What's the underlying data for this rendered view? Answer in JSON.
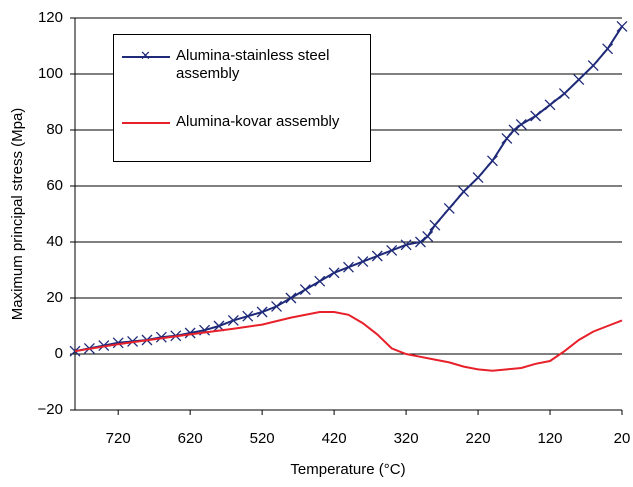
{
  "chart_data": {
    "type": "line",
    "x_label": "Temperature (°C)",
    "y_label": "Maximum principal stress (Mpa)",
    "xlim": [
      780,
      20
    ],
    "ylim": [
      -20,
      120
    ],
    "xticks": [
      720,
      620,
      520,
      420,
      320,
      220,
      120,
      20
    ],
    "yticks": [
      {
        "value": -20,
        "label": "−20"
      },
      0,
      20,
      40,
      60,
      80,
      100,
      120
    ],
    "grid": true,
    "legend": "upper left",
    "series": [
      {
        "name": "Alumina-stainless steel assembly",
        "color": "#1f2a78",
        "marker": "x",
        "x": [
          780,
          760,
          740,
          720,
          700,
          680,
          660,
          640,
          620,
          600,
          580,
          560,
          540,
          520,
          500,
          480,
          460,
          440,
          420,
          400,
          380,
          360,
          340,
          320,
          300,
          290,
          280,
          260,
          240,
          220,
          200,
          180,
          170,
          160,
          140,
          120,
          100,
          80,
          60,
          40,
          20
        ],
        "values": [
          1,
          2,
          3,
          4,
          4.5,
          5,
          6,
          6.5,
          7.5,
          8.5,
          10,
          12,
          13.5,
          15,
          17,
          20,
          23,
          26,
          29,
          31,
          33,
          35,
          37,
          39,
          40,
          42,
          46,
          52,
          58,
          63,
          69,
          77,
          80,
          82,
          85,
          89,
          93,
          98,
          103,
          109,
          117
        ]
      },
      {
        "name": "Alumina-kovar assembly",
        "color": "#e8202a",
        "marker": "none",
        "x": [
          780,
          720,
          620,
          560,
          520,
          480,
          440,
          420,
          400,
          380,
          360,
          340,
          320,
          300,
          280,
          260,
          240,
          220,
          200,
          180,
          160,
          140,
          120,
          100,
          80,
          60,
          40,
          20
        ],
        "values": [
          1,
          3.5,
          7,
          9,
          10.5,
          13,
          15,
          15,
          14,
          11,
          7,
          2,
          0,
          -1,
          -2,
          -3,
          -4.5,
          -5.5,
          -6,
          -5.5,
          -5,
          -3.5,
          -2.5,
          1,
          5,
          8,
          10,
          12
        ]
      }
    ]
  }
}
